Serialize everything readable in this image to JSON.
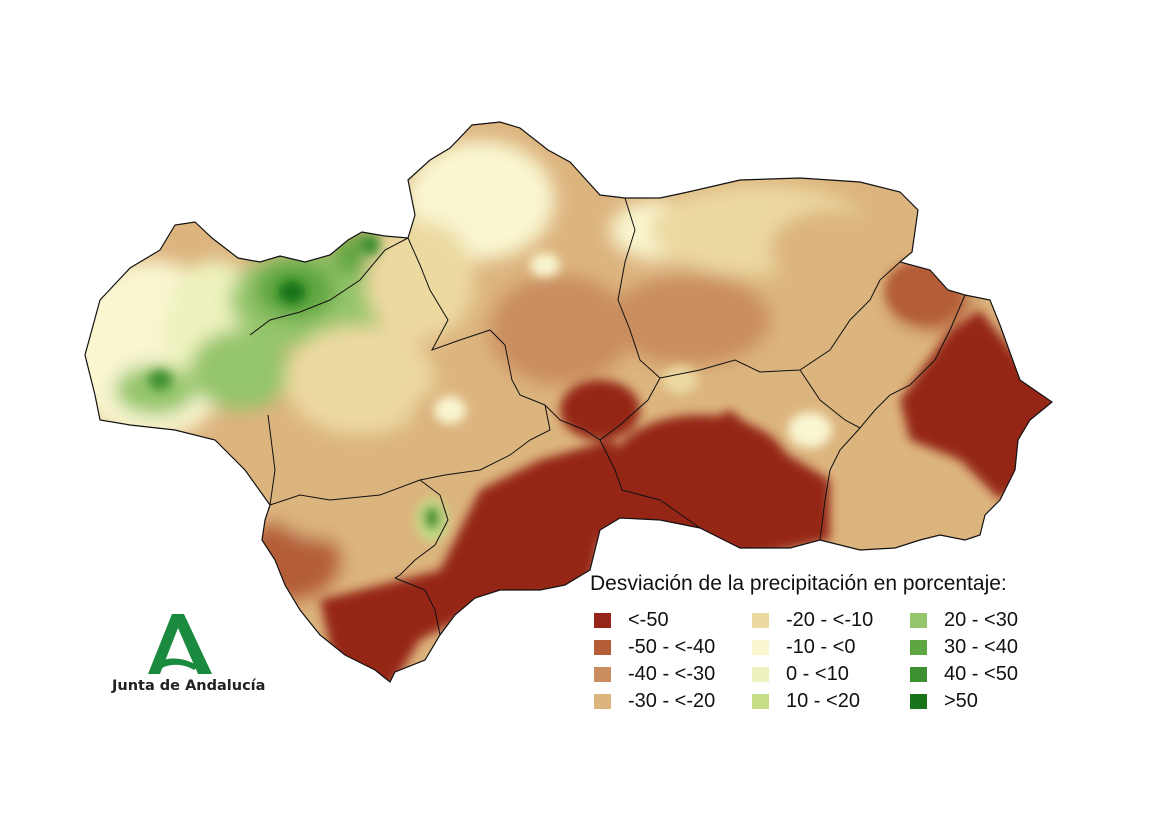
{
  "legend": {
    "title": "Desviación de la precipitación en porcentaje:",
    "classes": [
      {
        "label": "<-50",
        "color": "#952619"
      },
      {
        "label": "-50 - <-40",
        "color": "#b45d37"
      },
      {
        "label": "-40 - <-30",
        "color": "#c98d5f"
      },
      {
        "label": "-30 - <-20",
        "color": "#dcb47e"
      },
      {
        "label": "-20 - <-10",
        "color": "#ecd9a0"
      },
      {
        "label": "-10 - <0",
        "color": "#f9f6d0"
      },
      {
        "label": "0 - <10",
        "color": "#eef2be"
      },
      {
        "label": "10 - <20",
        "color": "#c5de85"
      },
      {
        "label": "20 - <30",
        "color": "#94c56a"
      },
      {
        "label": "30 - <40",
        "color": "#5ea641"
      },
      {
        "label": "40 - <50",
        "color": "#3d9030"
      },
      {
        "label": ">50",
        "color": "#197318"
      }
    ]
  },
  "logo": {
    "name": "Junta de Andalucía",
    "color": "#198a3e"
  },
  "map": {
    "region": "Andalucía",
    "pattern": "dry east and south coast (<-50), wetter northwest Sierra (green), mixed interior"
  }
}
